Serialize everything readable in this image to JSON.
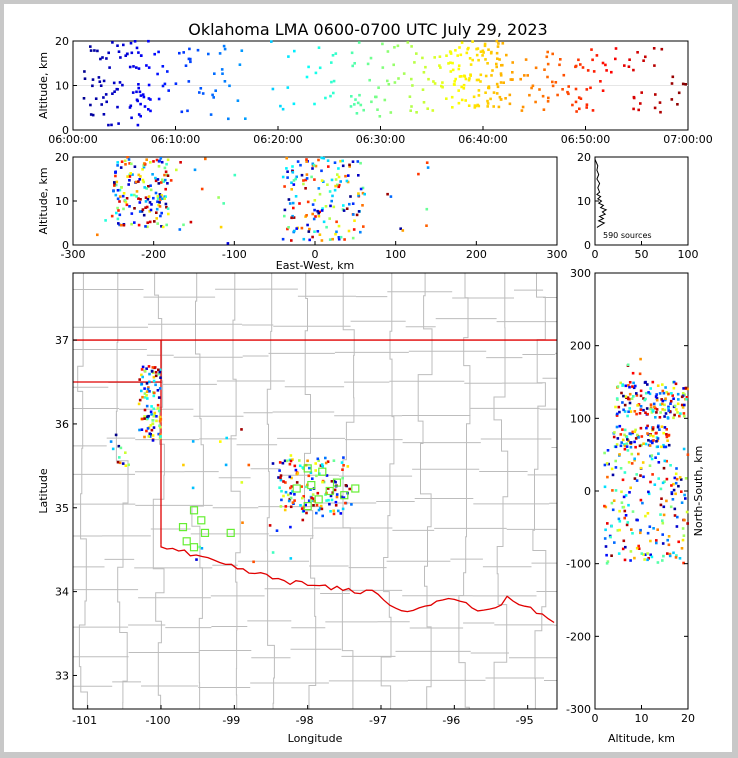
{
  "title": "Oklahoma LMA 0600-0700 UTC July 29, 2023",
  "colors": {
    "background": "#ffffff",
    "border": "#c8c8c8",
    "state_line": "#e00000",
    "county_line": "#bdbdbd",
    "station": "#66ee33"
  },
  "chart_data": [
    {
      "id": "time_height",
      "type": "scatter",
      "ylabel": "Altitude, km",
      "xlim": [
        "06:00:00",
        "07:00:00"
      ],
      "ylim": [
        0,
        20
      ],
      "xticks": [
        "06:00:00",
        "06:10:00",
        "06:20:00",
        "06:30:00",
        "06:40:00",
        "06:50:00",
        "07:00:00"
      ],
      "yticks": [
        "0",
        "10",
        "20"
      ],
      "color_by": "time",
      "clusters": [
        {
          "t_min": [
            1,
            9
          ],
          "alt_km": [
            1,
            20
          ],
          "n": 90
        },
        {
          "t_min": [
            9,
            17
          ],
          "alt_km": [
            2,
            19
          ],
          "n": 35
        },
        {
          "t_min": [
            19,
            27
          ],
          "alt_km": [
            4,
            20
          ],
          "n": 22
        },
        {
          "t_min": [
            27,
            36
          ],
          "alt_km": [
            3,
            20
          ],
          "n": 60
        },
        {
          "t_min": [
            36,
            42
          ],
          "alt_km": [
            5,
            20
          ],
          "n": 110
        },
        {
          "t_min": [
            42,
            50
          ],
          "alt_km": [
            4,
            18
          ],
          "n": 55
        },
        {
          "t_min": [
            50,
            60
          ],
          "alt_km": [
            4,
            20
          ],
          "n": 45
        }
      ]
    },
    {
      "id": "ew_height",
      "type": "scatter",
      "xlabel": "East-West, km",
      "ylabel": "Altitude, km",
      "xlim": [
        -300,
        300
      ],
      "ylim": [
        0,
        20
      ],
      "xticks": [
        "-300",
        "-200",
        "-100",
        "0",
        "100",
        "200",
        "300"
      ],
      "yticks": [
        "0",
        "10",
        "20"
      ],
      "clusters": [
        {
          "x_km": [
            -250,
            -180
          ],
          "alt_km": [
            4,
            20
          ],
          "n": 160
        },
        {
          "x_km": [
            -40,
            60
          ],
          "alt_km": [
            1,
            20
          ],
          "n": 160
        },
        {
          "x_km": [
            -280,
            -80
          ],
          "alt_km": [
            0,
            20
          ],
          "n": 20
        },
        {
          "x_km": [
            60,
            150
          ],
          "alt_km": [
            3,
            20
          ],
          "n": 10
        }
      ]
    },
    {
      "id": "altitude_histogram",
      "type": "line",
      "xlim": [
        0,
        100
      ],
      "ylim": [
        0,
        20
      ],
      "xticks": [
        "0",
        "50",
        "100"
      ],
      "yticks": [
        "0",
        "10",
        "20"
      ],
      "annotation": "590 sources",
      "profile": [
        {
          "alt_km": 4,
          "count": 2
        },
        {
          "alt_km": 4.5,
          "count": 6
        },
        {
          "alt_km": 5,
          "count": 10
        },
        {
          "alt_km": 5.5,
          "count": 4
        },
        {
          "alt_km": 6,
          "count": 9
        },
        {
          "alt_km": 6.5,
          "count": 5
        },
        {
          "alt_km": 7,
          "count": 11
        },
        {
          "alt_km": 7.5,
          "count": 8
        },
        {
          "alt_km": 8,
          "count": 12
        },
        {
          "alt_km": 8.5,
          "count": 6
        },
        {
          "alt_km": 9,
          "count": 9
        },
        {
          "alt_km": 9.5,
          "count": 4
        },
        {
          "alt_km": 10,
          "count": 7
        },
        {
          "alt_km": 10.5,
          "count": 3
        },
        {
          "alt_km": 11,
          "count": 6
        },
        {
          "alt_km": 11.5,
          "count": 2
        },
        {
          "alt_km": 12,
          "count": 5
        },
        {
          "alt_km": 13,
          "count": 3
        },
        {
          "alt_km": 14,
          "count": 5
        },
        {
          "alt_km": 15,
          "count": 2
        },
        {
          "alt_km": 16,
          "count": 4
        },
        {
          "alt_km": 17,
          "count": 2
        },
        {
          "alt_km": 18,
          "count": 3
        },
        {
          "alt_km": 19,
          "count": 1
        },
        {
          "alt_km": 19.5,
          "count": 0
        }
      ]
    },
    {
      "id": "plan_view",
      "type": "scatter",
      "xlabel": "Longitude",
      "ylabel": "Latitude",
      "xlim": [
        -101.2,
        -94.6
      ],
      "ylim": [
        32.6,
        37.8
      ],
      "xticks": [
        "-101",
        "-100",
        "-99",
        "-98",
        "-97",
        "-96",
        "-95"
      ],
      "yticks": [
        "33",
        "34",
        "35",
        "36",
        "37"
      ],
      "clusters": [
        {
          "lon": [
            -100.3,
            -100.0
          ],
          "lat": [
            36.1,
            36.7
          ],
          "n": 60
        },
        {
          "lon": [
            -100.3,
            -100.0
          ],
          "lat": [
            35.8,
            36.1
          ],
          "n": 40
        },
        {
          "lon": [
            -100.7,
            -100.4
          ],
          "lat": [
            35.5,
            35.9
          ],
          "n": 12
        },
        {
          "lon": [
            -98.4,
            -97.4
          ],
          "lat": [
            34.9,
            35.6
          ],
          "n": 140
        },
        {
          "lon": [
            -99.7,
            -98.0
          ],
          "lat": [
            34.3,
            36.1
          ],
          "n": 25
        }
      ],
      "stations": [
        {
          "lon": -99.55,
          "lat": 34.97
        },
        {
          "lon": -99.45,
          "lat": 34.85
        },
        {
          "lon": -99.7,
          "lat": 34.77
        },
        {
          "lon": -99.4,
          "lat": 34.7
        },
        {
          "lon": -99.65,
          "lat": 34.6
        },
        {
          "lon": -99.55,
          "lat": 34.53
        },
        {
          "lon": -99.05,
          "lat": 34.7
        },
        {
          "lon": -98.0,
          "lat": 35.47
        },
        {
          "lon": -97.8,
          "lat": 35.43
        },
        {
          "lon": -98.15,
          "lat": 35.23
        },
        {
          "lon": -97.95,
          "lat": 35.27
        },
        {
          "lon": -97.7,
          "lat": 35.2
        },
        {
          "lon": -97.6,
          "lat": 35.3
        },
        {
          "lon": -97.85,
          "lat": 35.1
        },
        {
          "lon": -97.5,
          "lat": 35.15
        },
        {
          "lon": -97.35,
          "lat": 35.23
        },
        {
          "lon": -98.0,
          "lat": 35.02
        }
      ]
    },
    {
      "id": "ns_height",
      "type": "scatter",
      "xlabel": "Altitude, km",
      "ylabel": "North-South, km",
      "xlim": [
        0,
        20
      ],
      "ylim": [
        -300,
        300
      ],
      "xticks": [
        "0",
        "10",
        "20"
      ],
      "yticks": [
        "-300",
        "-200",
        "-100",
        "0",
        "100",
        "200",
        "300"
      ],
      "clusters": [
        {
          "alt_km": [
            4,
            20
          ],
          "y_km": [
            100,
            150
          ],
          "n": 150
        },
        {
          "alt_km": [
            4,
            16
          ],
          "y_km": [
            60,
            90
          ],
          "n": 90
        },
        {
          "alt_km": [
            2,
            20
          ],
          "y_km": [
            -100,
            60
          ],
          "n": 190
        },
        {
          "alt_km": [
            7,
            10
          ],
          "y_km": [
            160,
            190
          ],
          "n": 5
        }
      ]
    }
  ]
}
